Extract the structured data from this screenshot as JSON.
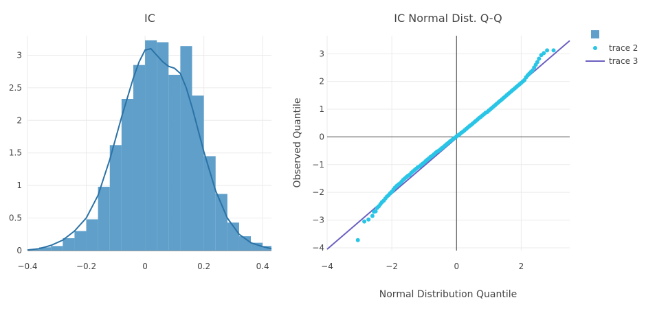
{
  "chart_data": [
    {
      "type": "bar",
      "title": "IC",
      "xlabel": "",
      "ylabel": "",
      "xlim": [
        -0.4,
        0.43
      ],
      "ylim": [
        0,
        3.3
      ],
      "grid": true,
      "x_ticks": [
        {
          "value": -0.4,
          "label": "−0.4"
        },
        {
          "value": -0.2,
          "label": "−0.2"
        },
        {
          "value": 0,
          "label": "0"
        },
        {
          "value": 0.2,
          "label": "0.2"
        },
        {
          "value": 0.4,
          "label": "0.4"
        }
      ],
      "y_ticks": [
        {
          "value": 0,
          "label": "0"
        },
        {
          "value": 0.5,
          "label": "0.5"
        },
        {
          "value": 1,
          "label": "1"
        },
        {
          "value": 1.5,
          "label": "1.5"
        },
        {
          "value": 2,
          "label": "2"
        },
        {
          "value": 2.5,
          "label": "2.5"
        },
        {
          "value": 3,
          "label": "3"
        }
      ],
      "series": [
        {
          "type": "histogram",
          "color": "#5f9fca",
          "bin_width": 0.04,
          "bin_left": [
            -0.4,
            -0.36,
            -0.32,
            -0.28,
            -0.24,
            -0.2,
            -0.16,
            -0.12,
            -0.08,
            -0.04,
            0,
            0.04,
            0.08,
            0.12,
            0.16,
            0.2,
            0.24,
            0.28,
            0.32,
            0.36,
            0.4
          ],
          "values": [
            0.02,
            0.05,
            0.07,
            0.19,
            0.3,
            0.48,
            0.98,
            1.62,
            2.33,
            2.85,
            3.23,
            3.2,
            2.7,
            3.14,
            2.38,
            1.45,
            0.87,
            0.43,
            0.22,
            0.12,
            0.07
          ]
        },
        {
          "type": "line",
          "color": "#2b72a6",
          "x": [
            -0.4,
            -0.36,
            -0.32,
            -0.28,
            -0.24,
            -0.2,
            -0.16,
            -0.12,
            -0.08,
            -0.04,
            -0.02,
            0,
            0.02,
            0.04,
            0.06,
            0.08,
            0.1,
            0.12,
            0.14,
            0.16,
            0.2,
            0.24,
            0.28,
            0.32,
            0.36,
            0.4,
            0.43
          ],
          "y": [
            0.01,
            0.03,
            0.08,
            0.16,
            0.3,
            0.5,
            0.85,
            1.4,
            2.05,
            2.65,
            2.9,
            3.08,
            3.1,
            3.0,
            2.9,
            2.83,
            2.8,
            2.72,
            2.5,
            2.2,
            1.52,
            0.92,
            0.5,
            0.25,
            0.12,
            0.06,
            0.03
          ]
        }
      ]
    },
    {
      "type": "scatter",
      "title": "IC Normal Dist. Q-Q",
      "xlabel": "Normal Distribution Quantile",
      "ylabel": "Observed Quantile",
      "xlim": [
        -4,
        3.5
      ],
      "ylim": [
        -4.1,
        3.65
      ],
      "grid": true,
      "x_ticks": [
        {
          "value": -4,
          "label": "−4"
        },
        {
          "value": -2,
          "label": "−2"
        },
        {
          "value": 0,
          "label": "0"
        },
        {
          "value": 2,
          "label": "2"
        }
      ],
      "y_ticks": [
        {
          "value": -4,
          "label": "−4"
        },
        {
          "value": -3,
          "label": "−3"
        },
        {
          "value": -2,
          "label": "−2"
        },
        {
          "value": -1,
          "label": "−1"
        },
        {
          "value": 0,
          "label": "0"
        },
        {
          "value": 1,
          "label": "1"
        },
        {
          "value": 2,
          "label": "2"
        },
        {
          "value": 3,
          "label": "3"
        }
      ],
      "series": [
        {
          "name": "trace 2",
          "type": "scatter",
          "color": "#29c5e6",
          "x": [
            -3.05,
            -2.85,
            -2.72,
            -2.6,
            -2.55,
            -2.5,
            -2.45,
            -2.4,
            -2.35,
            -2.3,
            -2.25,
            -2.2,
            -2.15,
            -2.1,
            -2.05,
            -2.0,
            -1.95,
            -1.9,
            -1.85,
            -1.8,
            -1.75,
            -1.7,
            -1.65,
            -1.6,
            -1.55,
            -1.5,
            -1.45,
            -1.4,
            -1.35,
            -1.3,
            -1.25,
            -1.2,
            -1.15,
            -1.1,
            -1.05,
            -1.0,
            -0.95,
            -0.9,
            -0.85,
            -0.8,
            -0.75,
            -0.7,
            -0.65,
            -0.6,
            -0.55,
            -0.5,
            -0.45,
            -0.4,
            -0.35,
            -0.3,
            -0.25,
            -0.2,
            -0.15,
            -0.1,
            -0.05,
            0.0,
            0.05,
            0.1,
            0.15,
            0.2,
            0.25,
            0.3,
            0.35,
            0.4,
            0.45,
            0.5,
            0.55,
            0.6,
            0.65,
            0.7,
            0.75,
            0.8,
            0.85,
            0.9,
            0.95,
            1.0,
            1.05,
            1.1,
            1.15,
            1.2,
            1.25,
            1.3,
            1.35,
            1.4,
            1.45,
            1.5,
            1.55,
            1.6,
            1.65,
            1.7,
            1.75,
            1.8,
            1.85,
            1.9,
            1.95,
            2.0,
            2.05,
            2.1,
            2.15,
            2.2,
            2.25,
            2.3,
            2.35,
            2.4,
            2.45,
            2.5,
            2.55,
            2.62,
            2.7,
            2.8,
            3.0
          ],
          "y": [
            -3.72,
            -3.05,
            -2.98,
            -2.85,
            -2.7,
            -2.68,
            -2.56,
            -2.5,
            -2.42,
            -2.35,
            -2.3,
            -2.22,
            -2.15,
            -2.1,
            -2.03,
            -1.98,
            -1.9,
            -1.83,
            -1.77,
            -1.72,
            -1.68,
            -1.62,
            -1.55,
            -1.5,
            -1.45,
            -1.4,
            -1.37,
            -1.3,
            -1.25,
            -1.2,
            -1.15,
            -1.1,
            -1.07,
            -1.02,
            -0.97,
            -0.92,
            -0.87,
            -0.82,
            -0.77,
            -0.72,
            -0.68,
            -0.63,
            -0.58,
            -0.53,
            -0.5,
            -0.45,
            -0.4,
            -0.36,
            -0.31,
            -0.26,
            -0.21,
            -0.16,
            -0.12,
            -0.07,
            -0.03,
            0.02,
            0.06,
            0.1,
            0.15,
            0.19,
            0.24,
            0.29,
            0.34,
            0.39,
            0.43,
            0.48,
            0.53,
            0.58,
            0.63,
            0.68,
            0.72,
            0.77,
            0.82,
            0.87,
            0.9,
            0.95,
            1.0,
            1.05,
            1.1,
            1.15,
            1.2,
            1.25,
            1.3,
            1.35,
            1.4,
            1.45,
            1.5,
            1.55,
            1.6,
            1.65,
            1.7,
            1.75,
            1.8,
            1.85,
            1.9,
            1.95,
            2.0,
            2.05,
            2.15,
            2.22,
            2.28,
            2.34,
            2.4,
            2.5,
            2.6,
            2.7,
            2.82,
            2.95,
            3.02,
            3.12,
            3.12
          ]
        },
        {
          "name": "trace 3",
          "type": "line",
          "color": "#6a5fc1",
          "x": [
            -4,
            3.5
          ],
          "y": [
            -4.05,
            3.47
          ]
        }
      ],
      "legend": {
        "placement": "top-right",
        "entries": [
          {
            "name": "",
            "marker": "square",
            "color": "#5f9fca"
          },
          {
            "name": "trace 2",
            "marker": "dot",
            "color": "#29c5e6"
          },
          {
            "name": "trace 3",
            "marker": "line",
            "color": "#6a5fc1"
          }
        ]
      }
    }
  ]
}
